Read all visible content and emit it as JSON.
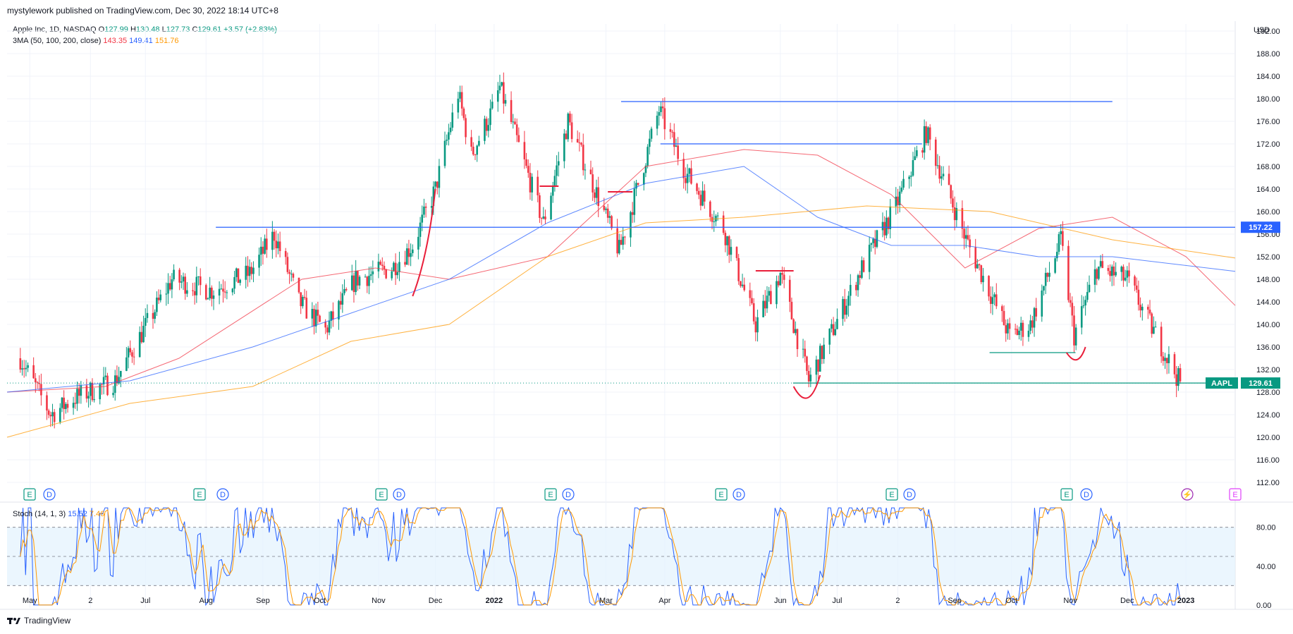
{
  "header": {
    "published": "mystylework published on TradingView.com, Dec 30, 2022 18:14 UTC+8"
  },
  "legend": {
    "symbol": "Apple Inc, 1D, NASDAQ",
    "o_label": "O",
    "o": "127.99",
    "h_label": "H",
    "h": "130.48",
    "l_label": "L",
    "l": "127.73",
    "c_label": "C",
    "c": "129.61",
    "change": "+3.57 (+2.83%)",
    "ma_label": "3MA (50, 100, 200, close)",
    "ma1": "143.35",
    "ma2": "149.41",
    "ma3": "151.76"
  },
  "stoch": {
    "label": "Stoch (14, 1, 3)",
    "k": "15.52",
    "d": "7.46"
  },
  "footer": {
    "brand": "TradingView"
  },
  "colors": {
    "up": "#089981",
    "down": "#f23645",
    "ma50": "#f23645",
    "ma100": "#2962ff",
    "ma200": "#ff9800",
    "stochK": "#2962ff",
    "stochD": "#ff9800"
  },
  "chart_data": {
    "type": "candlestick",
    "currency": "USD",
    "y_ticks": [
      112,
      116,
      120,
      124,
      128,
      132,
      136,
      140,
      144,
      148,
      152,
      156,
      160,
      164,
      168,
      172,
      176,
      180,
      184,
      188,
      192
    ],
    "ylim": [
      110,
      192.5
    ],
    "x_labels": [
      "May",
      "2",
      "Jul",
      "Aug",
      "Sep",
      "Oct",
      "Nov",
      "Dec",
      "2022",
      "Mar",
      "Apr",
      "Jun",
      "Jul",
      "2",
      "Sep",
      "Oct",
      "Nov",
      "Dec",
      "2023"
    ],
    "price_path": [
      [
        "2021-04-26",
        134
      ],
      [
        "2021-05-12",
        124
      ],
      [
        "2021-05-25",
        127
      ],
      [
        "2021-06-15",
        130
      ],
      [
        "2021-07-15",
        148
      ],
      [
        "2021-08-05",
        146
      ],
      [
        "2021-08-25",
        149
      ],
      [
        "2021-09-07",
        156
      ],
      [
        "2021-09-20",
        144
      ],
      [
        "2021-10-04",
        139
      ],
      [
        "2021-10-20",
        148
      ],
      [
        "2021-11-08",
        150
      ],
      [
        "2021-11-19",
        154
      ],
      [
        "2021-12-01",
        164
      ],
      [
        "2021-12-13",
        181
      ],
      [
        "2021-12-20",
        170
      ],
      [
        "2021-12-31",
        178
      ],
      [
        "2022-01-04",
        182
      ],
      [
        "2022-01-27",
        158
      ],
      [
        "2022-02-09",
        176
      ],
      [
        "2022-03-08",
        153
      ],
      [
        "2022-03-29",
        178
      ],
      [
        "2022-04-12",
        167
      ],
      [
        "2022-05-02",
        157
      ],
      [
        "2022-05-19",
        140
      ],
      [
        "2022-06-01",
        149
      ],
      [
        "2022-06-16",
        130
      ],
      [
        "2022-07-14",
        150
      ],
      [
        "2022-08-01",
        161
      ],
      [
        "2022-08-17",
        174
      ],
      [
        "2022-09-07",
        155
      ],
      [
        "2022-09-30",
        138
      ],
      [
        "2022-10-11",
        140
      ],
      [
        "2022-10-27",
        155
      ],
      [
        "2022-11-03",
        138
      ],
      [
        "2022-11-15",
        150
      ],
      [
        "2022-12-01",
        148
      ],
      [
        "2022-12-29",
        129.61
      ]
    ],
    "moving_averages": [
      {
        "values": [
          [
            0,
            128
          ],
          [
            0.08,
            129
          ],
          [
            0.14,
            134
          ],
          [
            0.24,
            148
          ],
          [
            0.3,
            150
          ],
          [
            0.36,
            148
          ],
          [
            0.44,
            152
          ],
          [
            0.52,
            168
          ],
          [
            0.6,
            171
          ],
          [
            0.66,
            170
          ],
          [
            0.72,
            163
          ],
          [
            0.78,
            150
          ],
          [
            0.84,
            157
          ],
          [
            0.9,
            159
          ],
          [
            0.96,
            152
          ],
          [
            1.0,
            143.35
          ]
        ]
      },
      {
        "values": [
          [
            0,
            128
          ],
          [
            0.1,
            130
          ],
          [
            0.2,
            136
          ],
          [
            0.28,
            142
          ],
          [
            0.36,
            148
          ],
          [
            0.44,
            158
          ],
          [
            0.52,
            165
          ],
          [
            0.6,
            168
          ],
          [
            0.66,
            159
          ],
          [
            0.72,
            154
          ],
          [
            0.78,
            154
          ],
          [
            0.84,
            152
          ],
          [
            0.9,
            152
          ],
          [
            1.0,
            149.41
          ]
        ]
      },
      {
        "values": [
          [
            0,
            120
          ],
          [
            0.1,
            126
          ],
          [
            0.2,
            129
          ],
          [
            0.28,
            137
          ],
          [
            0.36,
            140
          ],
          [
            0.44,
            152
          ],
          [
            0.52,
            158
          ],
          [
            0.6,
            159
          ],
          [
            0.7,
            161
          ],
          [
            0.8,
            160
          ],
          [
            0.9,
            155
          ],
          [
            1.0,
            151.76
          ]
        ]
      }
    ],
    "horizontal_levels": [
      {
        "value": 179.5,
        "x0": 0.5,
        "x1": 0.9
      },
      {
        "value": 172,
        "x0": 0.532,
        "x1": 0.745
      },
      {
        "value": 157.22,
        "x0": 0.17,
        "x1": 1.0,
        "tag": "157.22"
      },
      {
        "value": 129.61,
        "x0": 0.64,
        "x1": 1.0,
        "tag": "129.61",
        "symbol": "AAPL"
      },
      {
        "value": 135,
        "x0": 0.8,
        "x1": 0.87
      }
    ],
    "event_markers": [
      "E",
      "D",
      "E",
      "D",
      "E",
      "D",
      "E",
      "D",
      "E",
      "D",
      "E",
      "D",
      "E",
      "D",
      "⚡",
      "E"
    ],
    "stoch_ticks": [
      0,
      40,
      80
    ],
    "stoch_tick_labels": [
      "0.00",
      "40.00",
      "80.00"
    ],
    "stoch_band": [
      20,
      80
    ]
  }
}
